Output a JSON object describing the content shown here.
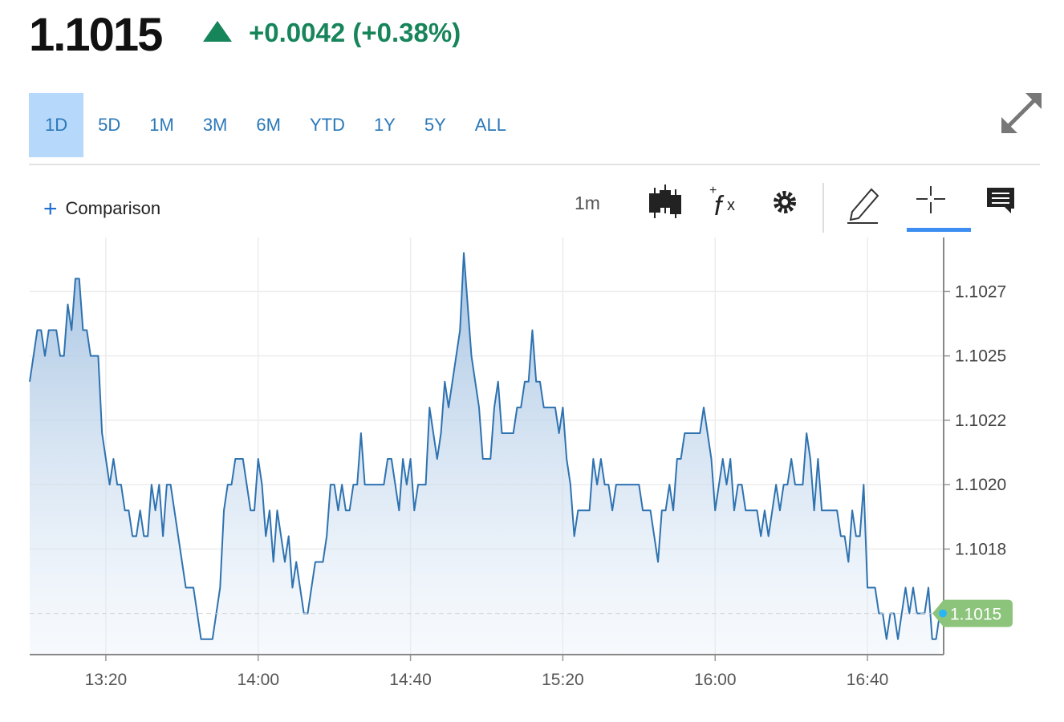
{
  "header": {
    "price": "1.1015",
    "change": "+0.0042 (+0.38%)"
  },
  "ranges": [
    "1D",
    "5D",
    "1M",
    "3M",
    "6M",
    "YTD",
    "1Y",
    "5Y",
    "ALL"
  ],
  "toolbar": {
    "comparison": "Comparison",
    "interval": "1m"
  },
  "chart_data": {
    "type": "area",
    "color": "#2e72b0",
    "grid": true,
    "last_price": 1.1015,
    "last_color": "#8dc47b",
    "xlim": [
      "13:00",
      "17:00"
    ],
    "xticks": [
      "13:20",
      "14:00",
      "14:40",
      "15:20",
      "16:00",
      "16:40"
    ],
    "ylim": [
      1.10134,
      1.10296
    ],
    "yticks": [
      {
        "value": 1.10275,
        "label": "1.1027"
      },
      {
        "value": 1.1025,
        "label": "1.1025"
      },
      {
        "value": 1.10225,
        "label": "1.1022"
      },
      {
        "value": 1.102,
        "label": "1.1020"
      },
      {
        "value": 1.10175,
        "label": "1.1018"
      }
    ],
    "x": [
      "13:00",
      "13:01",
      "13:02",
      "13:03",
      "13:04",
      "13:05",
      "13:06",
      "13:07",
      "13:08",
      "13:09",
      "13:10",
      "13:11",
      "13:12",
      "13:13",
      "13:14",
      "13:15",
      "13:16",
      "13:17",
      "13:18",
      "13:19",
      "13:20",
      "13:21",
      "13:22",
      "13:23",
      "13:24",
      "13:25",
      "13:26",
      "13:27",
      "13:28",
      "13:29",
      "13:30",
      "13:31",
      "13:32",
      "13:33",
      "13:34",
      "13:35",
      "13:36",
      "13:37",
      "13:38",
      "13:39",
      "13:40",
      "13:41",
      "13:42",
      "13:43",
      "13:44",
      "13:45",
      "13:46",
      "13:47",
      "13:48",
      "13:49",
      "13:50",
      "13:51",
      "13:52",
      "13:53",
      "13:54",
      "13:55",
      "13:56",
      "13:57",
      "13:58",
      "13:59",
      "14:00",
      "14:01",
      "14:02",
      "14:03",
      "14:04",
      "14:05",
      "14:06",
      "14:07",
      "14:08",
      "14:09",
      "14:10",
      "14:11",
      "14:12",
      "14:13",
      "14:14",
      "14:15",
      "14:16",
      "14:17",
      "14:18",
      "14:19",
      "14:20",
      "14:21",
      "14:22",
      "14:23",
      "14:24",
      "14:25",
      "14:26",
      "14:27",
      "14:28",
      "14:29",
      "14:30",
      "14:31",
      "14:32",
      "14:33",
      "14:34",
      "14:35",
      "14:36",
      "14:37",
      "14:38",
      "14:39",
      "14:40",
      "14:41",
      "14:42",
      "14:43",
      "14:44",
      "14:45",
      "14:46",
      "14:47",
      "14:48",
      "14:49",
      "14:50",
      "14:51",
      "14:52",
      "14:53",
      "14:54",
      "14:55",
      "14:56",
      "14:57",
      "14:58",
      "14:59",
      "15:00",
      "15:01",
      "15:02",
      "15:03",
      "15:04",
      "15:05",
      "15:06",
      "15:07",
      "15:08",
      "15:09",
      "15:10",
      "15:11",
      "15:12",
      "15:13",
      "15:14",
      "15:15",
      "15:16",
      "15:17",
      "15:18",
      "15:19",
      "15:20",
      "15:21",
      "15:22",
      "15:23",
      "15:24",
      "15:25",
      "15:26",
      "15:27",
      "15:28",
      "15:29",
      "15:30",
      "15:31",
      "15:32",
      "15:33",
      "15:34",
      "15:35",
      "15:36",
      "15:37",
      "15:38",
      "15:39",
      "15:40",
      "15:41",
      "15:42",
      "15:43",
      "15:44",
      "15:45",
      "15:46",
      "15:47",
      "15:48",
      "15:49",
      "15:50",
      "15:51",
      "15:52",
      "15:53",
      "15:54",
      "15:55",
      "15:56",
      "15:57",
      "15:58",
      "15:59",
      "16:00",
      "16:01",
      "16:02",
      "16:03",
      "16:04",
      "16:05",
      "16:06",
      "16:07",
      "16:08",
      "16:09",
      "16:10",
      "16:11",
      "16:12",
      "16:13",
      "16:14",
      "16:15",
      "16:16",
      "16:17",
      "16:18",
      "16:19",
      "16:20",
      "16:21",
      "16:22",
      "16:23",
      "16:24",
      "16:25",
      "16:26",
      "16:27",
      "16:28",
      "16:29",
      "16:30",
      "16:31",
      "16:32",
      "16:33",
      "16:34",
      "16:35",
      "16:36",
      "16:37",
      "16:38",
      "16:39",
      "16:40",
      "16:41",
      "16:42",
      "16:43",
      "16:44",
      "16:45",
      "16:46",
      "16:47",
      "16:48",
      "16:49",
      "16:50",
      "16:51",
      "16:52",
      "16:53",
      "16:54",
      "16:55",
      "16:56",
      "16:57",
      "16:58",
      "16:59"
    ],
    "values": [
      1.1024,
      1.1025,
      1.1026,
      1.1026,
      1.1025,
      1.1026,
      1.1026,
      1.1026,
      1.1025,
      1.1025,
      1.1027,
      1.1026,
      1.1028,
      1.1028,
      1.1026,
      1.1026,
      1.1025,
      1.1025,
      1.1025,
      1.1022,
      1.1021,
      1.102,
      1.1021,
      1.102,
      1.102,
      1.1019,
      1.1019,
      1.1018,
      1.1018,
      1.1019,
      1.1018,
      1.1018,
      1.102,
      1.1019,
      1.102,
      1.1018,
      1.102,
      1.102,
      1.1019,
      1.1018,
      1.1017,
      1.1016,
      1.1016,
      1.1016,
      1.1015,
      1.1014,
      1.1014,
      1.1014,
      1.1014,
      1.1015,
      1.1016,
      1.1019,
      1.102,
      1.102,
      1.1021,
      1.1021,
      1.1021,
      1.102,
      1.1019,
      1.1019,
      1.1021,
      1.102,
      1.1018,
      1.1019,
      1.1017,
      1.1019,
      1.1018,
      1.1017,
      1.1018,
      1.1016,
      1.1017,
      1.1016,
      1.1015,
      1.1015,
      1.1016,
      1.1017,
      1.1017,
      1.1017,
      1.1018,
      1.102,
      1.102,
      1.1019,
      1.102,
      1.1019,
      1.1019,
      1.102,
      1.102,
      1.1022,
      1.102,
      1.102,
      1.102,
      1.102,
      1.102,
      1.102,
      1.1021,
      1.1021,
      1.102,
      1.1019,
      1.1021,
      1.102,
      1.1021,
      1.1019,
      1.102,
      1.102,
      1.102,
      1.1023,
      1.1022,
      1.1021,
      1.1022,
      1.1024,
      1.1023,
      1.1024,
      1.1025,
      1.1026,
      1.1029,
      1.1027,
      1.1025,
      1.1024,
      1.1023,
      1.1021,
      1.1021,
      1.1021,
      1.1023,
      1.1024,
      1.1022,
      1.1022,
      1.1022,
      1.1022,
      1.1023,
      1.1023,
      1.1024,
      1.1024,
      1.1026,
      1.1024,
      1.1024,
      1.1023,
      1.1023,
      1.1023,
      1.1023,
      1.1022,
      1.1023,
      1.1021,
      1.102,
      1.1018,
      1.1019,
      1.1019,
      1.1019,
      1.1019,
      1.1021,
      1.102,
      1.1021,
      1.102,
      1.102,
      1.1019,
      1.102,
      1.102,
      1.102,
      1.102,
      1.102,
      1.102,
      1.102,
      1.1019,
      1.1019,
      1.1019,
      1.1018,
      1.1017,
      1.1019,
      1.1019,
      1.102,
      1.1019,
      1.1021,
      1.1021,
      1.1022,
      1.1022,
      1.1022,
      1.1022,
      1.1022,
      1.1023,
      1.1022,
      1.1021,
      1.1019,
      1.102,
      1.1021,
      1.102,
      1.1021,
      1.1019,
      1.102,
      1.102,
      1.1019,
      1.1019,
      1.1019,
      1.1019,
      1.1018,
      1.1019,
      1.1018,
      1.1019,
      1.102,
      1.1019,
      1.102,
      1.102,
      1.1021,
      1.102,
      1.102,
      1.102,
      1.1022,
      1.1021,
      1.1019,
      1.1021,
      1.1019,
      1.1019,
      1.1019,
      1.1019,
      1.1019,
      1.1018,
      1.1018,
      1.1017,
      1.1019,
      1.1018,
      1.1018,
      1.102,
      1.1016,
      1.1016,
      1.1016,
      1.1015,
      1.1015,
      1.1014,
      1.1015,
      1.1015,
      1.1014,
      1.1015,
      1.1016,
      1.1015,
      1.1016,
      1.1015,
      1.1015,
      1.1015,
      1.1016,
      1.1014,
      1.1014,
      1.1015
    ]
  }
}
